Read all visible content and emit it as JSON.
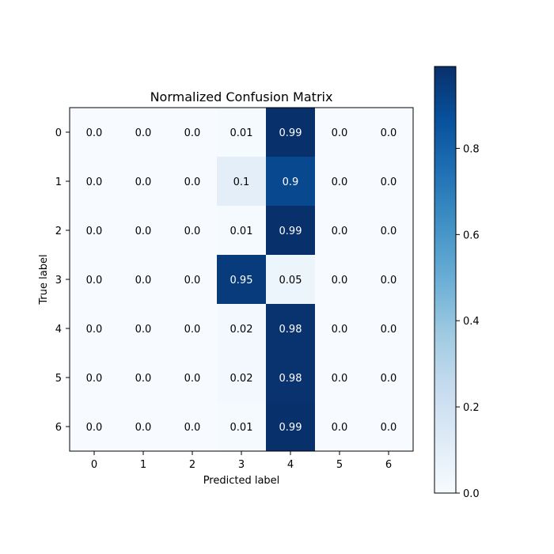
{
  "chart_data": {
    "type": "heatmap",
    "title": "Normalized Confusion Matrix",
    "xlabel": "Predicted label",
    "ylabel": "True label",
    "x_categories": [
      "0",
      "1",
      "2",
      "3",
      "4",
      "5",
      "6"
    ],
    "y_categories": [
      "0",
      "1",
      "2",
      "3",
      "4",
      "5",
      "6"
    ],
    "values": [
      [
        0.0,
        0.0,
        0.0,
        0.01,
        0.99,
        0.0,
        0.0
      ],
      [
        0.0,
        0.0,
        0.0,
        0.1,
        0.9,
        0.0,
        0.0
      ],
      [
        0.0,
        0.0,
        0.0,
        0.01,
        0.99,
        0.0,
        0.0
      ],
      [
        0.0,
        0.0,
        0.0,
        0.95,
        0.05,
        0.0,
        0.0
      ],
      [
        0.0,
        0.0,
        0.0,
        0.02,
        0.98,
        0.0,
        0.0
      ],
      [
        0.0,
        0.0,
        0.0,
        0.02,
        0.98,
        0.0,
        0.0
      ],
      [
        0.0,
        0.0,
        0.0,
        0.01,
        0.99,
        0.0,
        0.0
      ]
    ],
    "cell_labels": [
      [
        "0.0",
        "0.0",
        "0.0",
        "0.01",
        "0.99",
        "0.0",
        "0.0"
      ],
      [
        "0.0",
        "0.0",
        "0.0",
        "0.1",
        "0.9",
        "0.0",
        "0.0"
      ],
      [
        "0.0",
        "0.0",
        "0.0",
        "0.01",
        "0.99",
        "0.0",
        "0.0"
      ],
      [
        "0.0",
        "0.0",
        "0.0",
        "0.95",
        "0.05",
        "0.0",
        "0.0"
      ],
      [
        "0.0",
        "0.0",
        "0.0",
        "0.02",
        "0.98",
        "0.0",
        "0.0"
      ],
      [
        "0.0",
        "0.0",
        "0.0",
        "0.02",
        "0.98",
        "0.0",
        "0.0"
      ],
      [
        "0.0",
        "0.0",
        "0.0",
        "0.01",
        "0.99",
        "0.0",
        "0.0"
      ]
    ],
    "colormap": "Blues",
    "colormap_stops": [
      "#f7fbff",
      "#deebf7",
      "#c6dbef",
      "#9ecae1",
      "#6baed6",
      "#4292c6",
      "#2171b5",
      "#08519c",
      "#08306b"
    ],
    "colorbar": {
      "range": [
        0,
        0.99
      ],
      "ticks": [
        0.0,
        0.2,
        0.4,
        0.6,
        0.8
      ],
      "tick_labels": [
        "0.0",
        "0.2",
        "0.4",
        "0.6",
        "0.8"
      ]
    },
    "text_color_dark": "#000000",
    "text_color_light": "#ffffff",
    "text_threshold": 0.495
  }
}
